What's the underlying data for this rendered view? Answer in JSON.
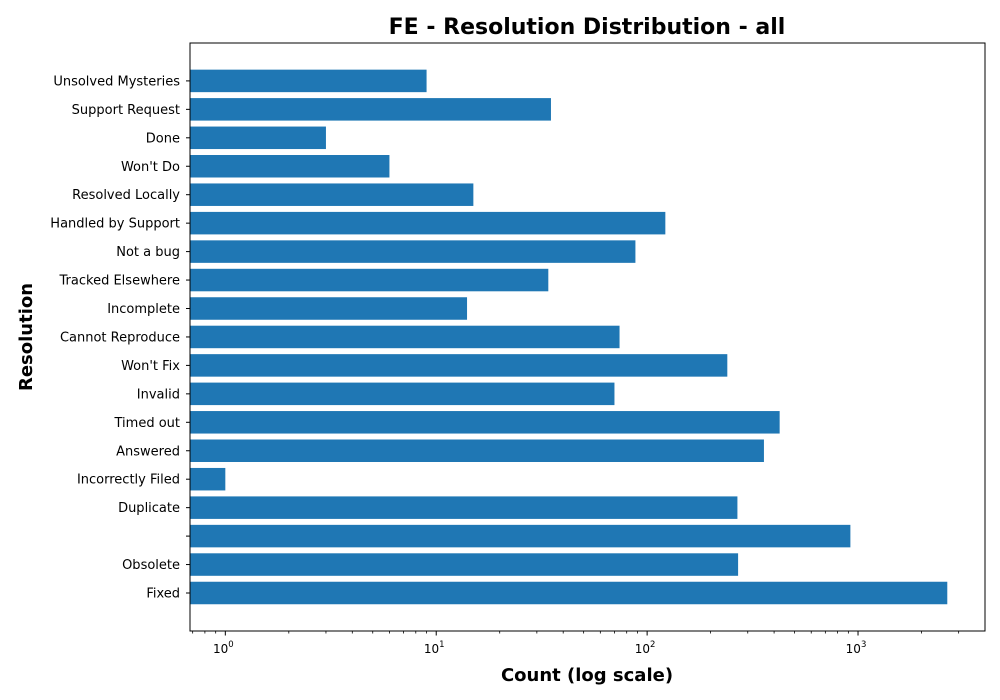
{
  "chart_data": {
    "type": "bar",
    "orientation": "horizontal",
    "title": "FE - Resolution Distribution - all",
    "xlabel": "Count (log scale)",
    "ylabel": "Resolution",
    "x_scale": "log",
    "xlim": [
      0.68,
      4000
    ],
    "x_ticks": [
      {
        "value": 1,
        "base": "10",
        "exp": "0"
      },
      {
        "value": 10,
        "base": "10",
        "exp": "1"
      },
      {
        "value": 100,
        "base": "10",
        "exp": "2"
      },
      {
        "value": 1000,
        "base": "10",
        "exp": "3"
      }
    ],
    "bar_color": "#1f77b4",
    "grid": false,
    "categories": [
      "Fixed",
      "Obsolete",
      "",
      "Duplicate",
      "Incorrectly Filed",
      "Answered",
      "Timed out",
      "Invalid",
      "Won't Fix",
      "Cannot Reproduce",
      "Incomplete",
      "Tracked Elsewhere",
      "Not a bug",
      "Handled by Support",
      "Resolved Locally",
      "Won't Do",
      "Done",
      "Support Request",
      "Unsolved Mysteries"
    ],
    "values": [
      2650,
      270,
      920,
      268,
      1,
      358,
      425,
      70,
      240,
      74,
      14,
      34,
      88,
      122,
      15,
      6,
      3,
      35,
      9
    ]
  }
}
